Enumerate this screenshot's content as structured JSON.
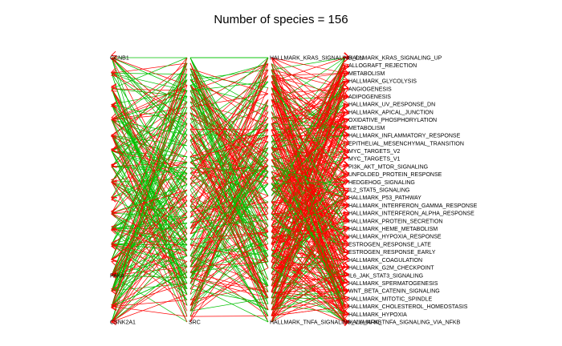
{
  "title": "Number of species = 156",
  "colors": {
    "edge_primary": "#ff0000",
    "edge_secondary": "#00c000",
    "arrow": "#ff0000",
    "text": "#000000"
  },
  "network": {
    "columns": [
      {
        "name": "source",
        "labels": [
          "CCNB1",
          "",
          "",
          "",
          "",
          "",
          "",
          "",
          "",
          "",
          "",
          "",
          "",
          "",
          "PAK4",
          "",
          "",
          "CSNK2A1"
        ]
      },
      {
        "name": "kinase",
        "labels": [
          "",
          "",
          "",
          "",
          "",
          "",
          "",
          "",
          "",
          "",
          "",
          "",
          "",
          "",
          "",
          "",
          "",
          "",
          "",
          "",
          "",
          "",
          "",
          "",
          "",
          "",
          "",
          "",
          "",
          "",
          "",
          "",
          "",
          "",
          "",
          "",
          "",
          "",
          "",
          "",
          "",
          "",
          "",
          "",
          "",
          "",
          "",
          "",
          "SRC"
        ]
      },
      {
        "name": "hallmark",
        "labels": [
          "HALLMARK_KRAS_SIGNALING_DN",
          "",
          "",
          "",
          "",
          "",
          "",
          "",
          "",
          "",
          "",
          "",
          "",
          "",
          "",
          "",
          "",
          "",
          "",
          "",
          "",
          "",
          "",
          "",
          "",
          "",
          "",
          "",
          "",
          "",
          "",
          "",
          "",
          "",
          "",
          "",
          "",
          "",
          "",
          "",
          "",
          "",
          "",
          "",
          "HALLMARK_TNFA_SIGNALING_VIA_NFKB"
        ]
      },
      {
        "name": "target",
        "labels": [
          "HALLMARK_KRAS_SIGNALING_UP",
          "ALLOGRAFT_REJECTION",
          "METABOLISM",
          "HALLMARK_GLYCOLYSIS",
          "ANGIOGENESIS",
          "ADIPOGENESIS",
          "HALLMARK_UV_RESPONSE_DN",
          "HALLMARK_APICAL_JUNCTION",
          "OXIDATIVE_PHOSPHORYLATION",
          "METABOLISM",
          "HALLMARK_INFLAMMATORY_RESPONSE",
          "EPITHELIAL_MESENCHYMAL_TRANSITION",
          "MYC_TARGETS_V2",
          "MYC_TARGETS_V1",
          "PI3K_AKT_MTOR_SIGNALING",
          "UNFOLDED_PROTEIN_RESPONSE",
          "HEDGEHOG_SIGNALING",
          "IL2_STAT5_SIGNALING",
          "HALLMARK_P53_PATHWAY",
          "HALLMARK_INTERFERON_GAMMA_RESPONSE",
          "HALLMARK_INTERFERON_ALPHA_RESPONSE",
          "HALLMARK_PROTEIN_SECRETION",
          "HALLMARK_HEME_METABOLISM",
          "HALLMARK_HYPOXIA_RESPONSE",
          "ESTROGEN_RESPONSE_LATE",
          "ESTROGEN_RESPONSE_EARLY",
          "HALLMARK_COAGULATION",
          "HALLMARK_G2M_CHECKPOINT",
          "IL6_JAK_STAT3_SIGNALING",
          "HALLMARK_SPERMATOGENESIS",
          "WNT_BETA_CATENIN_SIGNALING",
          "HALLMARK_MITOTIC_SPINDLE",
          "HALLMARK_CHOLESTEROL_HOMEOSTASIS",
          "HALLMARK_HYPOXIA",
          "HALLMARK_TNFA_SIGNALING_VIA_NFKB"
        ]
      }
    ]
  }
}
